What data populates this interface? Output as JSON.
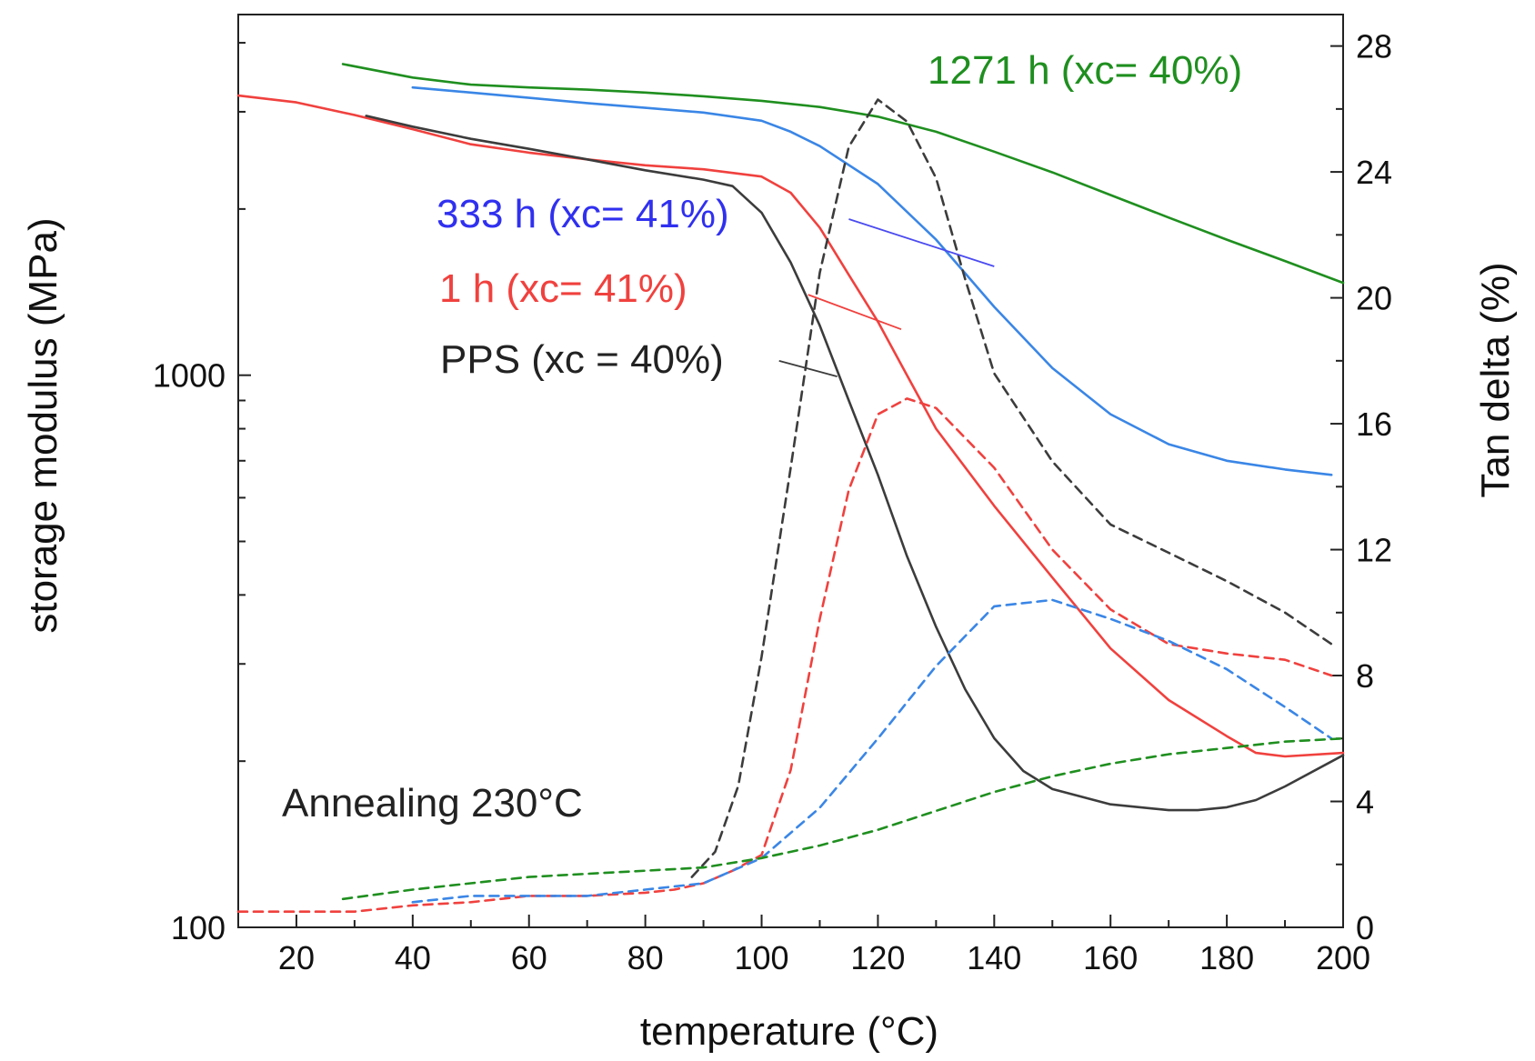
{
  "chart_data": {
    "type": "line",
    "title": "",
    "xlabel": "temperature (°C)",
    "ylabel": "storage modulus (MPa)",
    "y2label": "Tan delta (%)",
    "xlim": [
      10,
      200
    ],
    "ylim": [
      100,
      4500
    ],
    "yscale": "log",
    "y2lim": [
      0,
      29
    ],
    "grid": false,
    "x_ticks": [
      20,
      40,
      60,
      80,
      100,
      120,
      140,
      160,
      180,
      200
    ],
    "y_ticks": [
      100,
      1000
    ],
    "y2_ticks": [
      0,
      4,
      8,
      12,
      16,
      20,
      24,
      28
    ],
    "colors": {
      "PPS": "#3c3c3c",
      "1h": "#f0413e",
      "333h": "#3a86e6",
      "1271h": "#1f8f1f"
    },
    "annotations": {
      "annealing": "Annealing 230°C",
      "label_1271": "1271 h (xc= 40%)",
      "label_333": "333 h (xc= 41%)",
      "label_1": "1 h (xc= 41%)",
      "label_pps": "PPS (xc = 40%)"
    },
    "series": [
      {
        "key": "label_1271",
        "axis": "left",
        "style": "solid",
        "color": "#1f8f1f",
        "points": [
          [
            28,
            3660
          ],
          [
            40,
            3460
          ],
          [
            50,
            3360
          ],
          [
            60,
            3320
          ],
          [
            70,
            3290
          ],
          [
            80,
            3250
          ],
          [
            90,
            3200
          ],
          [
            100,
            3140
          ],
          [
            110,
            3060
          ],
          [
            120,
            2940
          ],
          [
            130,
            2760
          ],
          [
            140,
            2540
          ],
          [
            150,
            2330
          ],
          [
            160,
            2120
          ],
          [
            170,
            1930
          ],
          [
            180,
            1760
          ],
          [
            190,
            1610
          ],
          [
            200,
            1470
          ]
        ]
      },
      {
        "key": "label_333",
        "axis": "left",
        "style": "solid",
        "color": "#3a86e6",
        "points": [
          [
            40,
            3320
          ],
          [
            50,
            3250
          ],
          [
            60,
            3180
          ],
          [
            70,
            3110
          ],
          [
            80,
            3050
          ],
          [
            90,
            2990
          ],
          [
            100,
            2890
          ],
          [
            105,
            2760
          ],
          [
            110,
            2600
          ],
          [
            120,
            2220
          ],
          [
            130,
            1760
          ],
          [
            140,
            1330
          ],
          [
            150,
            1030
          ],
          [
            160,
            850
          ],
          [
            170,
            750
          ],
          [
            180,
            700
          ],
          [
            190,
            675
          ],
          [
            198,
            660
          ]
        ]
      },
      {
        "key": "label_1",
        "axis": "left",
        "style": "solid",
        "color": "#f0413e",
        "points": [
          [
            10,
            3210
          ],
          [
            20,
            3120
          ],
          [
            30,
            2960
          ],
          [
            40,
            2790
          ],
          [
            50,
            2620
          ],
          [
            60,
            2530
          ],
          [
            70,
            2460
          ],
          [
            80,
            2400
          ],
          [
            90,
            2360
          ],
          [
            100,
            2290
          ],
          [
            105,
            2140
          ],
          [
            110,
            1850
          ],
          [
            115,
            1520
          ],
          [
            120,
            1250
          ],
          [
            125,
            1000
          ],
          [
            130,
            800
          ],
          [
            140,
            580
          ],
          [
            150,
            430
          ],
          [
            160,
            320
          ],
          [
            170,
            258
          ],
          [
            180,
            222
          ],
          [
            185,
            207
          ],
          [
            190,
            204
          ],
          [
            200,
            207
          ]
        ]
      },
      {
        "key": "label_pps",
        "axis": "left",
        "style": "solid",
        "color": "#3c3c3c",
        "points": [
          [
            32,
            2950
          ],
          [
            40,
            2820
          ],
          [
            50,
            2680
          ],
          [
            60,
            2570
          ],
          [
            70,
            2460
          ],
          [
            80,
            2350
          ],
          [
            90,
            2260
          ],
          [
            95,
            2200
          ],
          [
            100,
            1970
          ],
          [
            105,
            1600
          ],
          [
            110,
            1230
          ],
          [
            115,
            900
          ],
          [
            120,
            660
          ],
          [
            125,
            470
          ],
          [
            130,
            350
          ],
          [
            135,
            270
          ],
          [
            140,
            220
          ],
          [
            145,
            192
          ],
          [
            150,
            178
          ],
          [
            160,
            167
          ],
          [
            170,
            163
          ],
          [
            175,
            163
          ],
          [
            180,
            165
          ],
          [
            185,
            170
          ],
          [
            190,
            180
          ],
          [
            200,
            205
          ]
        ]
      },
      {
        "key": "label_pps",
        "axis": "right",
        "style": "dashed",
        "color": "#3c3c3c",
        "points": [
          [
            88,
            1.6
          ],
          [
            92,
            2.4
          ],
          [
            96,
            4.5
          ],
          [
            100,
            8.6
          ],
          [
            105,
            14.6
          ],
          [
            110,
            20.8
          ],
          [
            115,
            24.8
          ],
          [
            120,
            26.3
          ],
          [
            125,
            25.6
          ],
          [
            130,
            23.8
          ],
          [
            135,
            20.6
          ],
          [
            140,
            17.6
          ],
          [
            150,
            14.8
          ],
          [
            160,
            12.8
          ],
          [
            170,
            11.9
          ],
          [
            180,
            11.0
          ],
          [
            190,
            10.0
          ],
          [
            198,
            9.0
          ]
        ]
      },
      {
        "key": "label_1",
        "axis": "right",
        "style": "dashed",
        "color": "#f0413e",
        "points": [
          [
            10,
            0.5
          ],
          [
            30,
            0.5
          ],
          [
            40,
            0.7
          ],
          [
            50,
            0.8
          ],
          [
            60,
            1.0
          ],
          [
            70,
            1.0
          ],
          [
            80,
            1.1
          ],
          [
            85,
            1.2
          ],
          [
            90,
            1.4
          ],
          [
            95,
            1.8
          ],
          [
            100,
            2.3
          ],
          [
            105,
            5.0
          ],
          [
            110,
            9.8
          ],
          [
            115,
            13.9
          ],
          [
            120,
            16.3
          ],
          [
            125,
            16.8
          ],
          [
            130,
            16.5
          ],
          [
            140,
            14.6
          ],
          [
            150,
            12.0
          ],
          [
            160,
            10.1
          ],
          [
            170,
            9.0
          ],
          [
            180,
            8.7
          ],
          [
            190,
            8.5
          ],
          [
            198,
            8.0
          ]
        ]
      },
      {
        "key": "label_333",
        "axis": "right",
        "style": "dashed",
        "color": "#3a86e6",
        "points": [
          [
            40,
            0.8
          ],
          [
            50,
            1.0
          ],
          [
            60,
            1.0
          ],
          [
            70,
            1.0
          ],
          [
            80,
            1.2
          ],
          [
            90,
            1.4
          ],
          [
            100,
            2.2
          ],
          [
            110,
            3.8
          ],
          [
            120,
            6.0
          ],
          [
            130,
            8.3
          ],
          [
            140,
            10.2
          ],
          [
            150,
            10.4
          ],
          [
            160,
            9.8
          ],
          [
            170,
            9.1
          ],
          [
            180,
            8.2
          ],
          [
            190,
            7.0
          ],
          [
            198,
            6.0
          ]
        ]
      },
      {
        "key": "label_1271",
        "axis": "right",
        "style": "dashed",
        "color": "#1f8f1f",
        "points": [
          [
            28,
            0.9
          ],
          [
            40,
            1.2
          ],
          [
            50,
            1.4
          ],
          [
            60,
            1.6
          ],
          [
            70,
            1.7
          ],
          [
            80,
            1.8
          ],
          [
            90,
            1.9
          ],
          [
            100,
            2.2
          ],
          [
            110,
            2.6
          ],
          [
            120,
            3.1
          ],
          [
            130,
            3.7
          ],
          [
            140,
            4.3
          ],
          [
            150,
            4.8
          ],
          [
            160,
            5.2
          ],
          [
            170,
            5.5
          ],
          [
            180,
            5.7
          ],
          [
            190,
            5.9
          ],
          [
            200,
            6.0
          ]
        ]
      }
    ],
    "leaders": [
      {
        "key": "label_333",
        "color": "#4b4bf0",
        "from": [
          115,
          22.5
        ],
        "to": [
          140,
          21.0
        ]
      },
      {
        "key": "label_1",
        "color": "#f0413e",
        "from": [
          108,
          20.1
        ],
        "to": [
          124,
          19.0
        ]
      },
      {
        "key": "label_pps",
        "color": "#3c3c3c",
        "from": [
          103,
          18.0
        ],
        "to": [
          113,
          17.5
        ]
      }
    ]
  }
}
